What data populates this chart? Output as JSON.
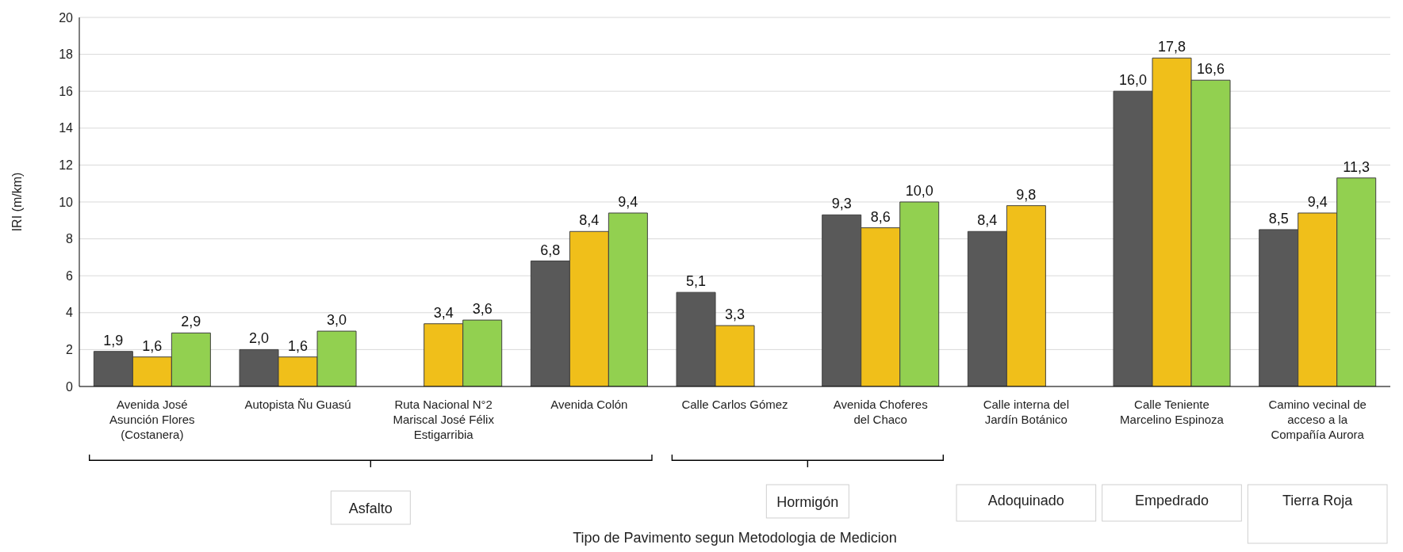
{
  "chart_data": {
    "type": "bar",
    "ylabel": "IRI (m/km)",
    "categories": [
      "Avenida José Asunción Flores (Costanera)",
      "Autopista Ñu Guasú",
      "Ruta Nacional N°2 Mariscal José Félix Estigarribia",
      "Avenida Colón",
      "Calle Carlos Gómez",
      "Avenida Choferes del Chaco",
      "Calle interna del Jardín Botánico",
      "Calle Teniente Marcelino Espinoza",
      "Camino vecinal de acceso a la Compañía Aurora"
    ],
    "series": [
      {
        "color": "#595959",
        "values": [
          1.9,
          2.0,
          null,
          6.8,
          5.1,
          9.3,
          8.4,
          16.0,
          8.5
        ],
        "value_labels": [
          "1,9",
          "2,0",
          null,
          "6,8",
          "5,1",
          "9,3",
          "8,4",
          "16,0",
          "8,5"
        ]
      },
      {
        "color": "#f0bf1a",
        "values": [
          1.6,
          1.6,
          3.4,
          8.4,
          3.3,
          8.6,
          9.8,
          17.8,
          9.4
        ],
        "value_labels": [
          "1,6",
          "1,6",
          "3,4",
          "8,4",
          "3,3",
          "8,6",
          "9,8",
          "17,8",
          "9,4"
        ]
      },
      {
        "color": "#92d050",
        "values": [
          2.9,
          3.0,
          3.6,
          9.4,
          null,
          10.0,
          null,
          16.6,
          11.3
        ],
        "value_labels": [
          "2,9",
          "3,0",
          "3,6",
          "9,4",
          null,
          "10,0",
          null,
          "16,6",
          "11,3"
        ]
      }
    ],
    "ylim": [
      0,
      20
    ],
    "yticks": [
      0,
      2,
      4,
      6,
      8,
      10,
      12,
      14,
      16,
      18,
      20
    ],
    "grid": "y",
    "annotations": [
      "Asfalto",
      "Hormigón",
      "Adoquinado",
      "Empedrado",
      "Tierra Roja",
      "Tipo de Pavimento segun Metodologia de Medicion"
    ]
  }
}
